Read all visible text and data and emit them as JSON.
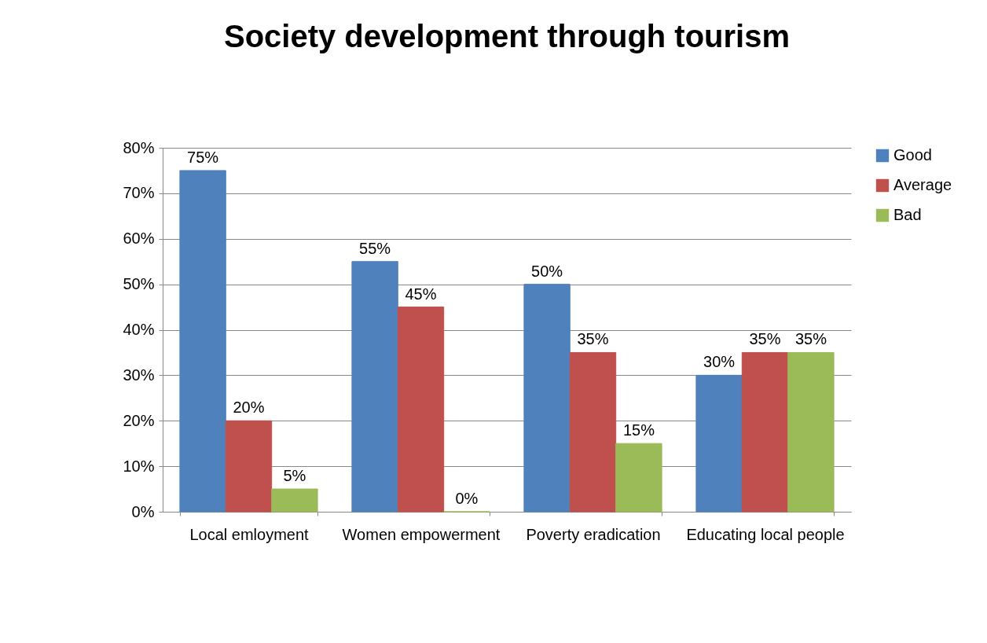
{
  "chart_data": {
    "type": "bar",
    "title": "Society development through tourism",
    "categories": [
      "Local emloyment",
      "Women empowerment",
      "Poverty eradication",
      "Educating local people"
    ],
    "series": [
      {
        "name": "Good",
        "color": "#4f81bd",
        "values": [
          75,
          55,
          50,
          30
        ],
        "value_labels": [
          "75%",
          "55%",
          "50%",
          "30%"
        ]
      },
      {
        "name": "Average",
        "color": "#c0504d",
        "values": [
          20,
          45,
          35,
          35
        ],
        "value_labels": [
          "20%",
          "45%",
          "35%",
          "35%"
        ]
      },
      {
        "name": "Bad",
        "color": "#9bbb59",
        "values": [
          5,
          0,
          15,
          35
        ],
        "value_labels": [
          "5%",
          "0%",
          "15%",
          "35%"
        ]
      }
    ],
    "ylim": [
      0,
      80
    ],
    "yticks": [
      {
        "value": 0,
        "label": "0%"
      },
      {
        "value": 10,
        "label": "10%"
      },
      {
        "value": 20,
        "label": "20%"
      },
      {
        "value": 30,
        "label": "30%"
      },
      {
        "value": 40,
        "label": "40%"
      },
      {
        "value": 50,
        "label": "50%"
      },
      {
        "value": 60,
        "label": "60%"
      },
      {
        "value": 70,
        "label": "70%"
      },
      {
        "value": 80,
        "label": "80%"
      }
    ],
    "grid": "y",
    "legend": "right"
  }
}
